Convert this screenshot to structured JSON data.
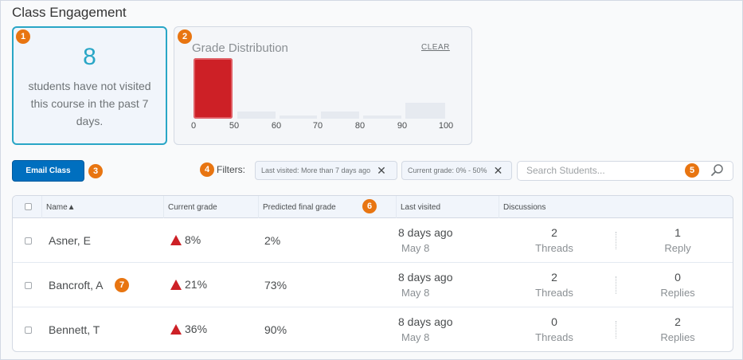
{
  "page": {
    "title": "Class Engagement"
  },
  "badges": {
    "b1": "1",
    "b2": "2",
    "b3": "3",
    "b4": "4",
    "b5": "5",
    "b6": "6",
    "b7": "7"
  },
  "not_visited_card": {
    "count": "8",
    "text": "students have not visited this course in the past 7 days."
  },
  "grade_distribution": {
    "title": "Grade Distribution",
    "clear_label": "CLEAR"
  },
  "chart_data": {
    "type": "bar",
    "title": "Grade Distribution",
    "tick_labels": [
      "0",
      "50",
      "60",
      "70",
      "80",
      "90",
      "100"
    ],
    "bins": [
      "0-50",
      "50-60",
      "60-70",
      "70-80",
      "80-90",
      "90-100"
    ],
    "values": [
      8,
      1,
      0.4,
      1,
      0.4,
      2.1
    ],
    "selected_bin": "0-50",
    "colors": {
      "selected": "#cd2026",
      "other": "#e6eaf0"
    }
  },
  "toolbar": {
    "email_label": "Email Class",
    "filters_label": "Filters:",
    "filters": [
      {
        "label": "Last visited: More than 7 days ago"
      },
      {
        "label": "Current grade: 0% - 50%"
      }
    ],
    "search_placeholder": "Search Students..."
  },
  "table": {
    "headers": {
      "name": "Name▲",
      "current_grade": "Current grade",
      "predicted": "Predicted final grade",
      "last_visited": "Last visited",
      "discussions": "Discussions"
    },
    "rows": [
      {
        "name": "Asner, E",
        "current": "8%",
        "predicted": "2%",
        "last_visited": "8 days ago",
        "last_date": "May 8",
        "threads": "2",
        "threads_label": "Threads",
        "replies": "1",
        "replies_label": "Reply"
      },
      {
        "name": "Bancroft, A",
        "current": "21%",
        "predicted": "73%",
        "last_visited": "8 days ago",
        "last_date": "May 8",
        "threads": "2",
        "threads_label": "Threads",
        "replies": "0",
        "replies_label": "Replies"
      },
      {
        "name": "Bennett, T",
        "current": "36%",
        "predicted": "90%",
        "last_visited": "8 days ago",
        "last_date": "May 8",
        "threads": "0",
        "threads_label": "Threads",
        "replies": "2",
        "replies_label": "Replies"
      }
    ]
  },
  "colors": {
    "accent": "#29a6c6",
    "badge": "#e87511",
    "primary_button": "#006fbf",
    "alert": "#cd2026"
  }
}
